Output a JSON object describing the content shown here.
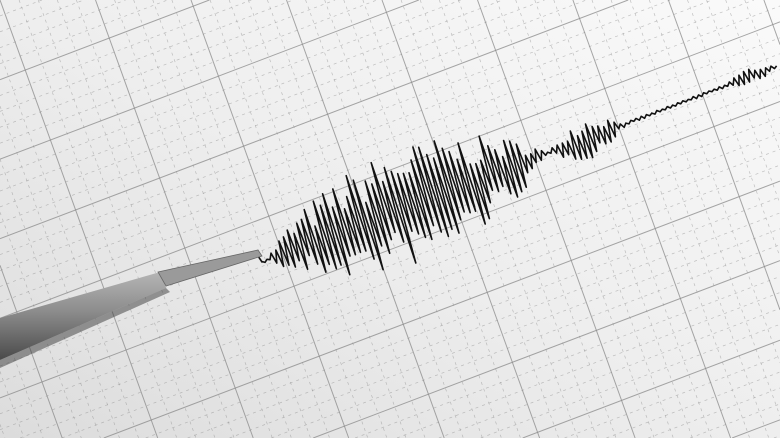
{
  "scene": {
    "paper_color": "#f1f1f1",
    "grid_color": "#8a8a8a",
    "trace_color": "#111111",
    "stylus_color": "#7a7a7a"
  }
}
